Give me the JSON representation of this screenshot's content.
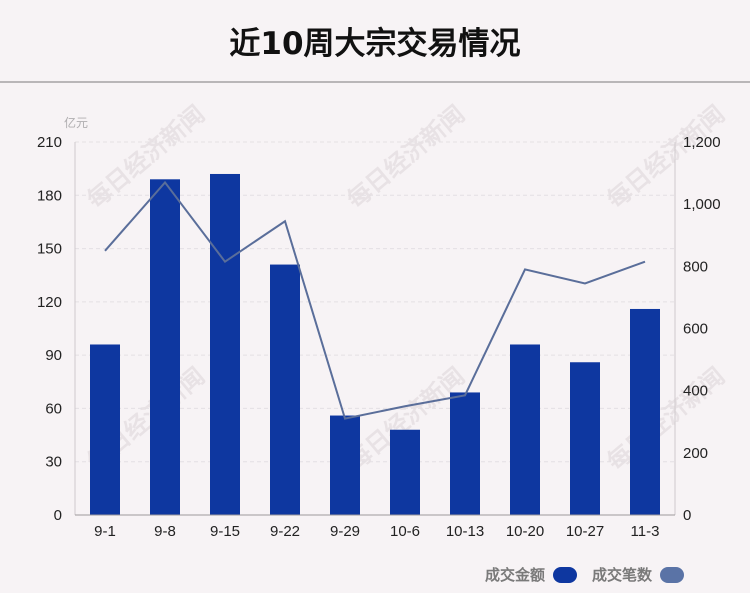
{
  "title": "近10周大宗交易情况",
  "unit_label": "亿元",
  "watermark": "每日经济新闻",
  "legend": {
    "amount_label": "成交金额",
    "count_label": "成交笔数"
  },
  "colors": {
    "bar": "#0e37a0",
    "line": "#5a6e9a",
    "count_swatch": "#5a73a6"
  },
  "chart_data": {
    "type": "bar+line",
    "categories": [
      "9-1",
      "9-8",
      "9-15",
      "9-22",
      "9-29",
      "10-6",
      "10-13",
      "10-20",
      "10-27",
      "11-3"
    ],
    "series": [
      {
        "name": "成交金额",
        "type": "bar",
        "axis": "left",
        "values": [
          96,
          189,
          192,
          141,
          56,
          48,
          69,
          96,
          86,
          116
        ]
      },
      {
        "name": "成交笔数",
        "type": "line",
        "axis": "right",
        "values": [
          850,
          1070,
          815,
          945,
          310,
          350,
          385,
          790,
          745,
          815
        ]
      }
    ],
    "y_left": {
      "min": 0,
      "max": 210,
      "ticks": [
        "0",
        "30",
        "60",
        "90",
        "120",
        "150",
        "180",
        "210"
      ]
    },
    "y_right": {
      "min": 0,
      "max": 1200,
      "ticks": [
        "0",
        "200",
        "400",
        "600",
        "800",
        "1,000",
        "1,200"
      ]
    },
    "grid": true,
    "legend_position": "bottom-right"
  }
}
